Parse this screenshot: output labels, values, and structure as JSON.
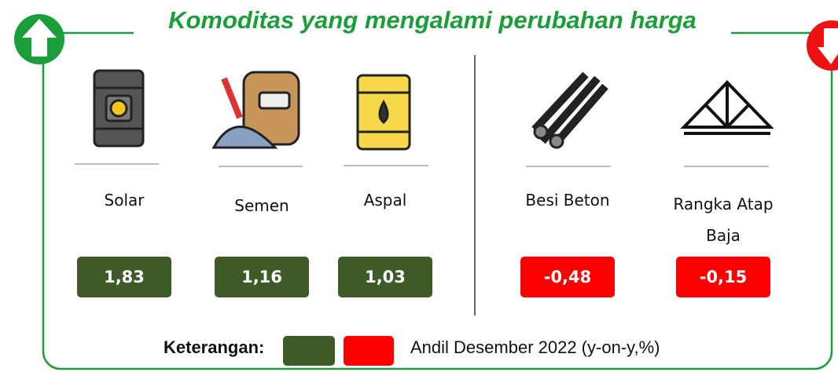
{
  "title": "Komoditas yang mengalami perubahan harga",
  "increase": [
    {
      "name": "Solar",
      "value": "1,83"
    },
    {
      "name": "Semen",
      "value": "1,16"
    },
    {
      "name": "Aspal",
      "value": "1,03"
    }
  ],
  "decrease": [
    {
      "name": "Besi Beton",
      "value": "-0,48"
    },
    {
      "name": "Rangka Atap Baja",
      "value": "-0,15"
    }
  ],
  "legend": {
    "label": "Keterangan:",
    "text": "Andil Desember 2022 (y-on-y,%)"
  }
}
